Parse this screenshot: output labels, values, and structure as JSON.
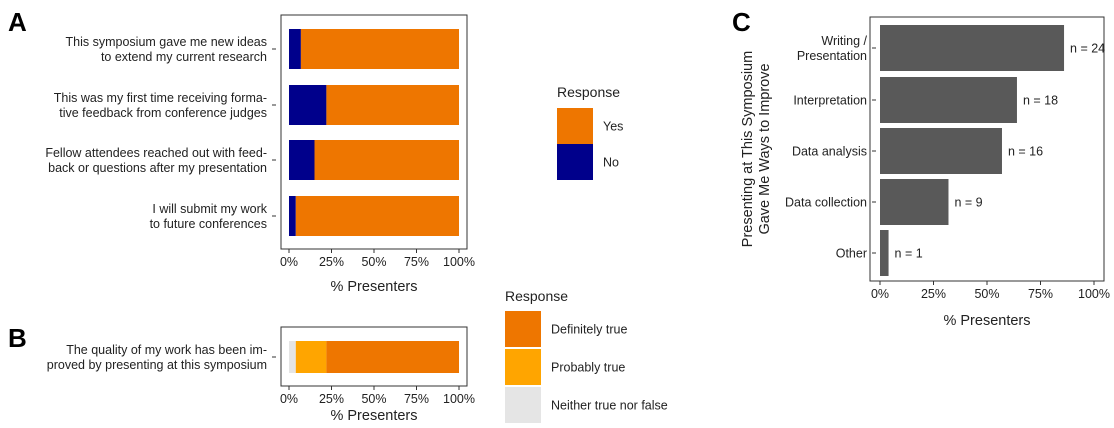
{
  "colors": {
    "orange": "#EE7600",
    "navy": "#00008B",
    "amber": "#FFA500",
    "light_gray": "#E5E5E5",
    "bar_gray": "#595959",
    "axis": "#333333",
    "text": "#222222"
  },
  "panels": {
    "a": "A",
    "b": "B",
    "c": "C"
  },
  "chart_data": [
    {
      "panel": "A",
      "type": "bar",
      "orientation": "horizontal",
      "stacked": true,
      "categories": [
        [
          "This symposium gave me new ideas",
          "to extend my current research"
        ],
        [
          "This was my first time receiving forma-",
          "tive feedback from conference judges"
        ],
        [
          "Fellow attendees reached out with feed-",
          "back or questions after my presentation"
        ],
        [
          "I will submit my work",
          "to future conferences"
        ]
      ],
      "series": [
        {
          "name": "No",
          "values": [
            7,
            22,
            15,
            4
          ],
          "color": "#00008B"
        },
        {
          "name": "Yes",
          "values": [
            93,
            78,
            85,
            96
          ],
          "color": "#EE7600"
        }
      ],
      "xlabel": "% Presenters",
      "xlim": [
        0,
        100
      ],
      "xticks": [
        "0%",
        "25%",
        "50%",
        "75%",
        "100%"
      ],
      "legend": {
        "title": "Response",
        "placement": "right",
        "items": [
          {
            "label": "Yes",
            "color": "#EE7600"
          },
          {
            "label": "No",
            "color": "#00008B"
          }
        ]
      },
      "grid": false
    },
    {
      "panel": "B",
      "type": "bar",
      "orientation": "horizontal",
      "stacked": true,
      "categories": [
        [
          "The quality of my work has been im-",
          "proved by presenting at this symposium"
        ]
      ],
      "series": [
        {
          "name": "Neither true nor false",
          "values": [
            4
          ],
          "color": "#E5E5E5"
        },
        {
          "name": "Probably true",
          "values": [
            18
          ],
          "color": "#FFA500"
        },
        {
          "name": "Definitely true",
          "values": [
            78
          ],
          "color": "#EE7600"
        }
      ],
      "xlabel": "% Presenters",
      "xlim": [
        0,
        100
      ],
      "xticks": [
        "0%",
        "25%",
        "50%",
        "75%",
        "100%"
      ],
      "legend": {
        "title": "Response",
        "placement": "right",
        "items": [
          {
            "label": "Definitely true",
            "color": "#EE7600"
          },
          {
            "label": "Probably true",
            "color": "#FFA500"
          },
          {
            "label": "Neither true nor false",
            "color": "#E5E5E5"
          }
        ]
      },
      "grid": false
    },
    {
      "panel": "C",
      "type": "bar",
      "orientation": "horizontal",
      "categories": [
        [
          "Writing /",
          "Presentation"
        ],
        [
          "Interpretation"
        ],
        [
          "Data analysis"
        ],
        [
          "Data collection"
        ],
        [
          "Other"
        ]
      ],
      "values": [
        86,
        64,
        57,
        32,
        4
      ],
      "data_labels": [
        "n = 24",
        "n = 18",
        "n = 16",
        "n = 9",
        "n = 1"
      ],
      "color": "#595959",
      "xlabel": "% Presenters",
      "ylabel": [
        "Presenting at This Symposium",
        "Gave Me Ways to Improve"
      ],
      "xlim": [
        0,
        100
      ],
      "xticks": [
        "0%",
        "25%",
        "50%",
        "75%",
        "100%"
      ],
      "grid": false
    }
  ]
}
